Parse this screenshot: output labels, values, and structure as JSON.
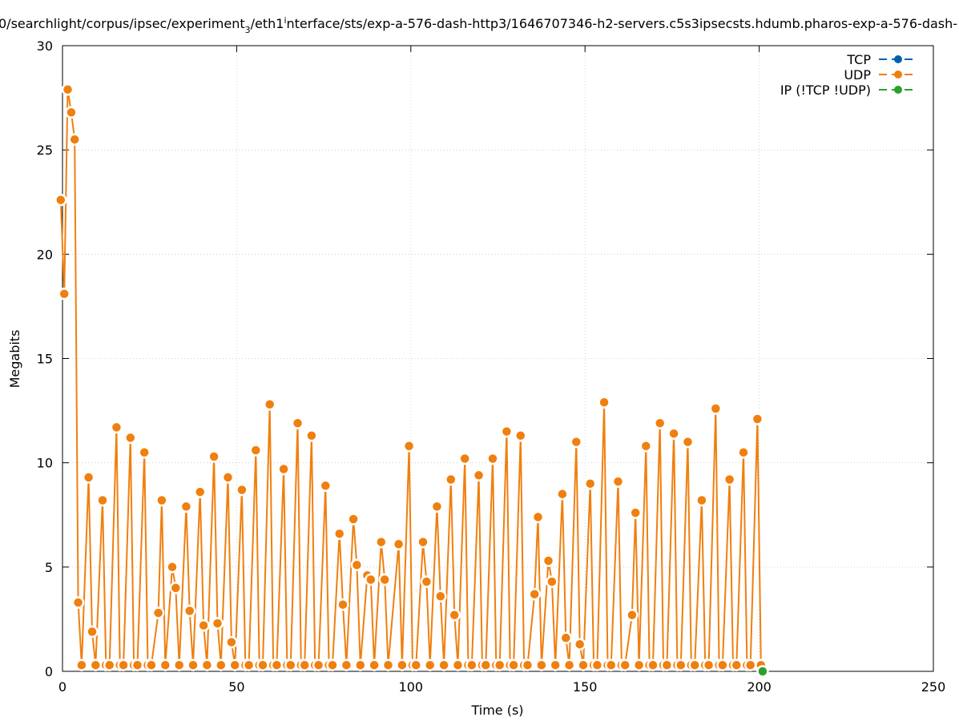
{
  "chart_data": {
    "type": "line",
    "title": "0/searchlight/corpus/ipsec/experiment",
    "title_sub": "3",
    "title_mid": "/eth1",
    "title_sub2": "i",
    "title_end": "nterface/sts/exp-a-576-dash-http3/1646707346-h2-servers.c5s3ipsecsts.hdumb.pharos-exp-a-576-dash-",
    "xlabel": "Time (s)",
    "ylabel": "Megabits",
    "xlim": [
      0,
      250
    ],
    "ylim": [
      0,
      30
    ],
    "xticks": [
      0,
      50,
      100,
      150,
      200,
      250
    ],
    "yticks": [
      0,
      5,
      10,
      15,
      20,
      25,
      30
    ],
    "grid": true,
    "legend_position": "top-right",
    "colors": {
      "TCP": "#0060ad",
      "UDP": "#f07f0e",
      "IP": "#2ca02c"
    },
    "series": [
      {
        "name": "TCP",
        "x": [],
        "y": []
      },
      {
        "name": "UDP",
        "x": [
          -0.5,
          0.5,
          1.5,
          2.5,
          3.5,
          4.5,
          5.5,
          7.5,
          8.5,
          9.5,
          11.5,
          12.5,
          13.5,
          15.5,
          16.5,
          17.5,
          19.5,
          20.5,
          21.5,
          23.5,
          24.5,
          25.5,
          27.5,
          28.5,
          29.5,
          31.5,
          32.5,
          33.5,
          35.5,
          36.5,
          37.5,
          39.5,
          40.5,
          41.5,
          43.5,
          44.5,
          45.5,
          47.5,
          48.5,
          49.5,
          51.5,
          52.5,
          53.5,
          55.5,
          56.5,
          57.5,
          59.5,
          60.5,
          61.5,
          63.5,
          64.5,
          65.5,
          67.5,
          68.5,
          69.5,
          71.5,
          72.5,
          73.5,
          75.5,
          76.5,
          77.5,
          79.5,
          80.5,
          81.5,
          83.5,
          84.5,
          85.5,
          87.5,
          88.5,
          89.5,
          91.5,
          92.5,
          93.5,
          96.5,
          97.5,
          99.5,
          100.5,
          101.5,
          103.5,
          104.5,
          105.5,
          107.5,
          108.5,
          109.5,
          111.5,
          112.5,
          113.5,
          115.5,
          116.5,
          117.5,
          119.5,
          120.5,
          121.5,
          123.5,
          124.5,
          125.5,
          127.5,
          128.5,
          129.5,
          131.5,
          132.5,
          133.5,
          135.5,
          136.5,
          137.5,
          139.5,
          140.5,
          141.5,
          143.5,
          144.5,
          145.5,
          147.5,
          148.5,
          149.5,
          151.5,
          152.5,
          153.5,
          155.5,
          156.5,
          157.5,
          159.5,
          160.5,
          161.5,
          163.5,
          164.5,
          165.5,
          167.5,
          168.5,
          169.5,
          171.5,
          172.5,
          173.5,
          175.5,
          176.5,
          177.5,
          179.5,
          180.5,
          181.5,
          183.5,
          184.5,
          185.5,
          187.5,
          188.5,
          189.5,
          191.5,
          192.5,
          193.5,
          195.5,
          196.5,
          197.5,
          199.5,
          200.5
        ],
        "y": [
          22.6,
          18.1,
          27.9,
          26.8,
          25.5,
          3.3,
          0.3,
          9.3,
          1.9,
          0.3,
          8.2,
          0.3,
          0.3,
          11.7,
          0.3,
          0.3,
          11.2,
          0.3,
          0.3,
          10.5,
          0.3,
          0.3,
          2.8,
          8.2,
          0.3,
          5.0,
          4.0,
          0.3,
          7.9,
          2.9,
          0.3,
          8.6,
          2.2,
          0.3,
          10.3,
          2.3,
          0.3,
          9.3,
          1.4,
          0.3,
          8.7,
          0.3,
          0.3,
          10.6,
          0.3,
          0.3,
          12.8,
          0.3,
          0.3,
          9.7,
          0.3,
          0.3,
          11.9,
          0.3,
          0.3,
          11.3,
          0.3,
          0.3,
          8.9,
          0.3,
          0.3,
          6.6,
          3.2,
          0.3,
          7.3,
          5.1,
          0.3,
          4.6,
          4.4,
          0.3,
          6.2,
          4.4,
          0.3,
          6.1,
          0.3,
          10.8,
          0.3,
          0.3,
          6.2,
          4.3,
          0.3,
          7.9,
          3.6,
          0.3,
          9.2,
          2.7,
          0.3,
          10.2,
          0.3,
          0.3,
          9.4,
          0.3,
          0.3,
          10.2,
          0.3,
          0.3,
          11.5,
          0.3,
          0.3,
          11.3,
          0.3,
          0.3,
          3.7,
          7.4,
          0.3,
          5.3,
          4.3,
          0.3,
          8.5,
          1.6,
          0.3,
          11.0,
          1.3,
          0.3,
          9.0,
          0.3,
          0.3,
          12.9,
          0.3,
          0.3,
          9.1,
          0.3,
          0.3,
          2.7,
          7.6,
          0.3,
          10.8,
          0.3,
          0.3,
          11.9,
          0.3,
          0.3,
          11.4,
          0.3,
          0.3,
          11.0,
          0.3,
          0.3,
          8.2,
          0.3,
          0.3,
          12.6,
          0.3,
          0.3,
          9.2,
          0.3,
          0.3,
          10.5,
          0.3,
          0.3,
          12.1,
          0.3
        ]
      },
      {
        "name": "IP (!TCP  !UDP)",
        "x": [
          201
        ],
        "y": [
          0
        ]
      }
    ]
  }
}
